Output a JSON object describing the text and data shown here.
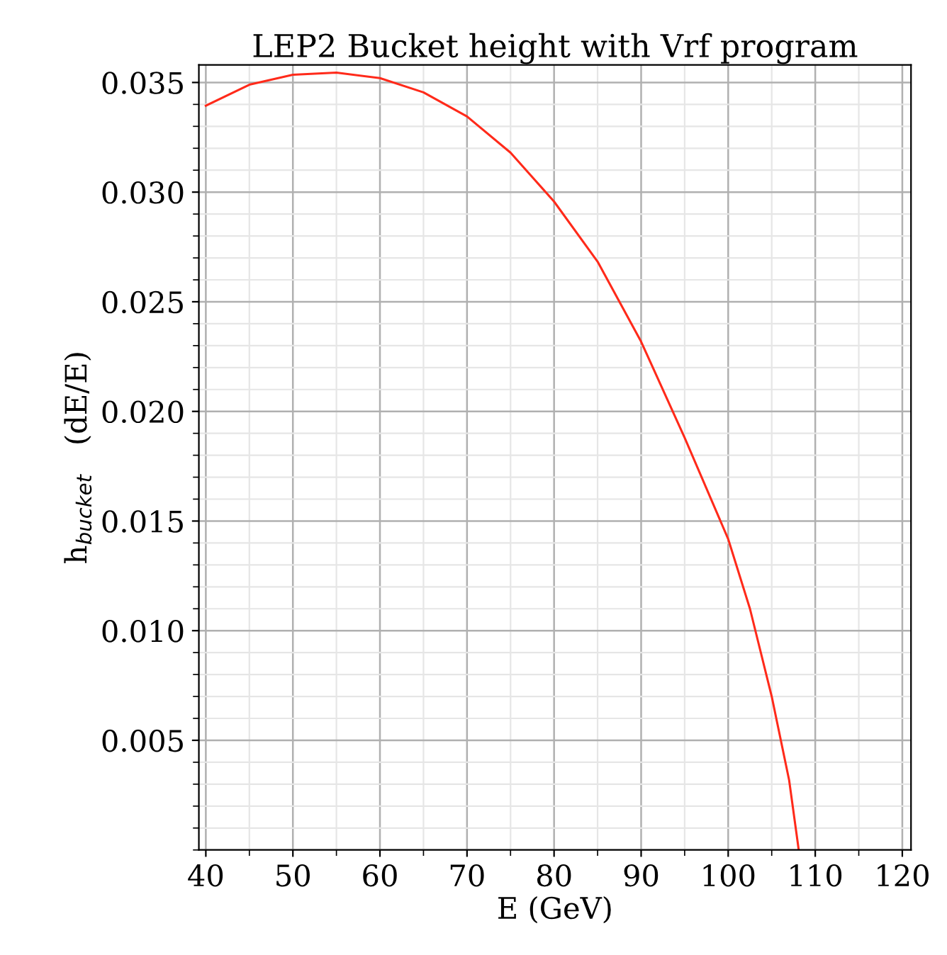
{
  "chart_data": {
    "type": "line",
    "title": "LEP2 Bucket height with Vrf program",
    "xlabel": "E (GeV)",
    "ylabel": "h$_{bucket}$   (dE/E)",
    "x": [
      40,
      45,
      50,
      55,
      60,
      65,
      70,
      75,
      80,
      85,
      90,
      95,
      100,
      102.5,
      105,
      107,
      108,
      108.1
    ],
    "series": [
      {
        "color": "#ff2a1a",
        "values": [
          0.03394,
          0.0349,
          0.03535,
          0.03545,
          0.0352,
          0.03455,
          0.03345,
          0.0318,
          0.02957,
          0.02683,
          0.02318,
          0.0188,
          0.01418,
          0.011,
          0.007,
          0.00318,
          0.0003,
          0.0
        ]
      }
    ],
    "xlim": [
      39.2,
      121
    ],
    "ylim": [
      0,
      0.0358
    ],
    "xticks": [
      40,
      50,
      60,
      70,
      80,
      90,
      100,
      110,
      120
    ],
    "yticks": [
      0.005,
      {
        "value": 0.01,
        "label": "0.010"
      },
      0.015,
      {
        "value": 0.02,
        "label": "0.020"
      },
      0.025,
      {
        "value": 0.03,
        "label": "0.030"
      },
      0.035
    ],
    "grid": true,
    "line_style": "solid",
    "marker": "none"
  }
}
